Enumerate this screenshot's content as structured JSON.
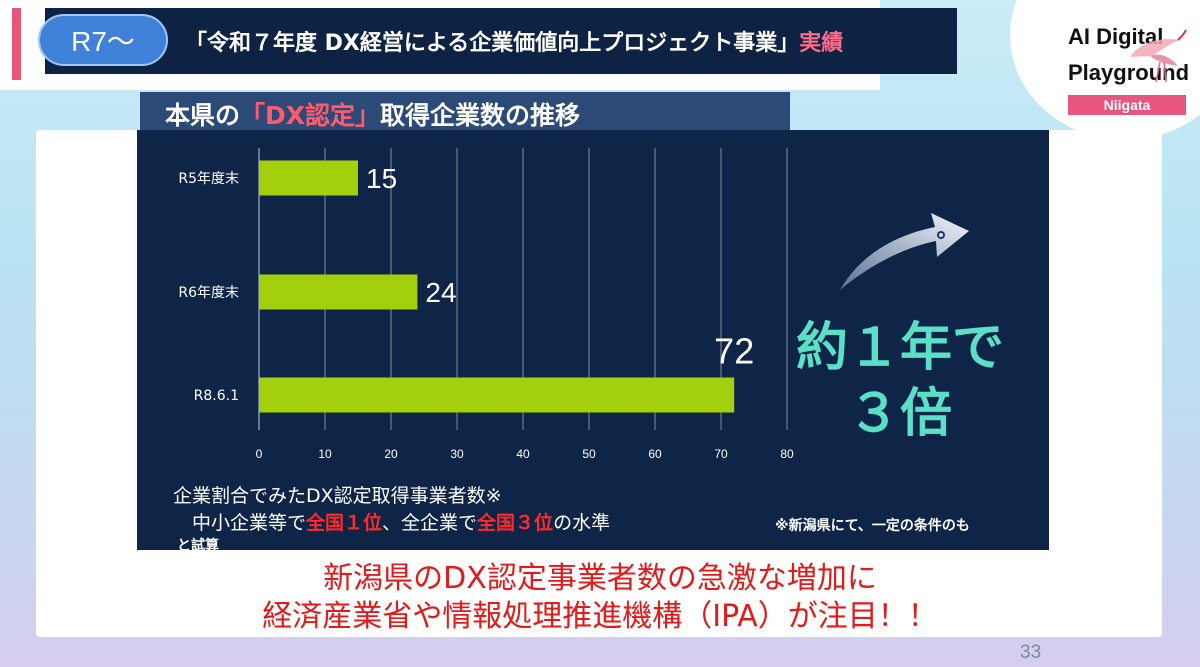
{
  "header": {
    "badge": "R7～",
    "title": "「令和７年度 DX経営による企業価値向上プロジェクト事業」",
    "title_accent": "実績"
  },
  "subtitle": {
    "prefix": "本県の",
    "highlight": "「DX認定」",
    "suffix": "取得企業数の推移"
  },
  "logo": {
    "line1": "AI Digital",
    "line2": "Playground",
    "region": "Niigata"
  },
  "chart_data": {
    "type": "bar",
    "orientation": "horizontal",
    "categories": [
      "R5年度末",
      "R6年度末",
      "R8.6.1"
    ],
    "values": [
      15,
      24,
      72
    ],
    "data_labels": [
      "15",
      "24",
      "72"
    ],
    "xlim": [
      0,
      80
    ],
    "x_ticks": [
      "0",
      "10",
      "20",
      "30",
      "40",
      "50",
      "60",
      "70",
      "80"
    ],
    "grid": true,
    "bar_color": "#a4cf0c",
    "background": "#0f2547"
  },
  "callout": {
    "line1": "約１年で",
    "line2": "３倍",
    "color": "#5be0c8"
  },
  "notes": {
    "line1": "企業割合でみたDX認定取得事業者数※",
    "line2_a": "　中小企業等で",
    "line2_b": "全国１位",
    "line2_c": "、全企業で",
    "line2_d": "全国３位",
    "line2_e": "の水準",
    "side": "※新潟県にて、一定の条件のも",
    "side_cont": "と試算"
  },
  "headline": {
    "line1": "新潟県のDX認定事業者数の急激な増加に",
    "line2": "経済産業省や情報処理推進機構（IPA）が注目！！"
  },
  "page_number": "33"
}
